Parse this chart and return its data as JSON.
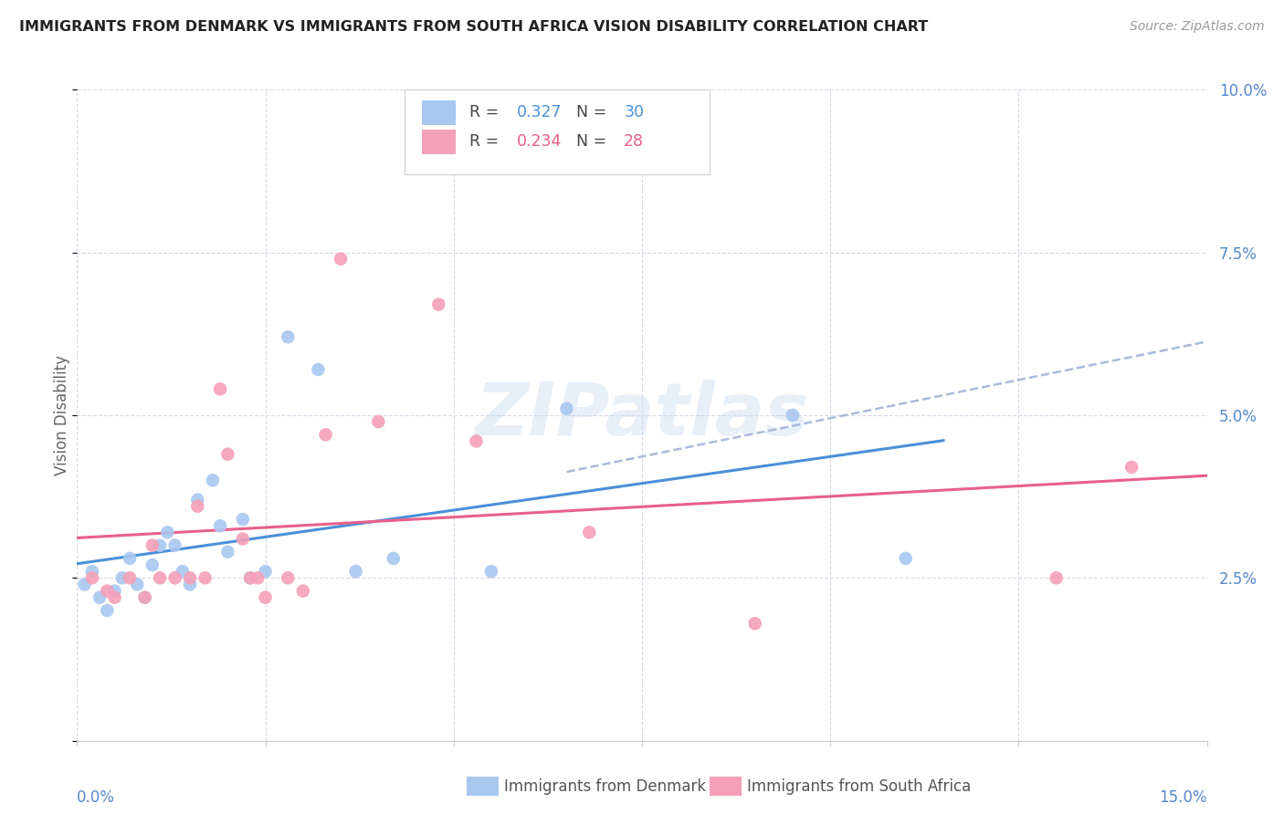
{
  "title": "IMMIGRANTS FROM DENMARK VS IMMIGRANTS FROM SOUTH AFRICA VISION DISABILITY CORRELATION CHART",
  "source": "Source: ZipAtlas.com",
  "ylabel": "Vision Disability",
  "xlim": [
    0.0,
    0.15
  ],
  "ylim": [
    0.0,
    0.1
  ],
  "denmark_color": "#a8c8f0",
  "south_africa_color": "#f4a0b8",
  "denmark_line_color": "#4a90d9",
  "south_africa_line_color": "#e8608a",
  "denmark_dashed_color": "#aabbd8",
  "background_color": "#ffffff",
  "grid_color": "#d8d8e8",
  "legend_denmark_R": "0.327",
  "legend_denmark_N": "30",
  "legend_sa_R": "0.234",
  "legend_sa_N": "28",
  "watermark": "ZIPatlas",
  "tick_color": "#5588cc",
  "denmark_x": [
    0.001,
    0.002,
    0.003,
    0.004,
    0.005,
    0.006,
    0.007,
    0.008,
    0.009,
    0.01,
    0.011,
    0.012,
    0.013,
    0.014,
    0.015,
    0.016,
    0.018,
    0.019,
    0.02,
    0.022,
    0.023,
    0.025,
    0.028,
    0.032,
    0.037,
    0.042,
    0.055,
    0.065,
    0.095,
    0.11
  ],
  "denmark_y": [
    0.024,
    0.026,
    0.022,
    0.02,
    0.023,
    0.025,
    0.028,
    0.024,
    0.022,
    0.027,
    0.03,
    0.032,
    0.03,
    0.026,
    0.024,
    0.037,
    0.04,
    0.033,
    0.029,
    0.034,
    0.025,
    0.026,
    0.062,
    0.057,
    0.026,
    0.028,
    0.026,
    0.051,
    0.05,
    0.028
  ],
  "sa_x": [
    0.002,
    0.004,
    0.005,
    0.007,
    0.009,
    0.01,
    0.011,
    0.013,
    0.015,
    0.016,
    0.017,
    0.019,
    0.02,
    0.022,
    0.023,
    0.024,
    0.025,
    0.028,
    0.03,
    0.033,
    0.035,
    0.04,
    0.048,
    0.053,
    0.068,
    0.09,
    0.13,
    0.14
  ],
  "sa_y": [
    0.025,
    0.023,
    0.022,
    0.025,
    0.022,
    0.03,
    0.025,
    0.025,
    0.025,
    0.036,
    0.025,
    0.054,
    0.044,
    0.031,
    0.025,
    0.025,
    0.022,
    0.025,
    0.023,
    0.047,
    0.074,
    0.049,
    0.067,
    0.046,
    0.032,
    0.018,
    0.025,
    0.042
  ]
}
